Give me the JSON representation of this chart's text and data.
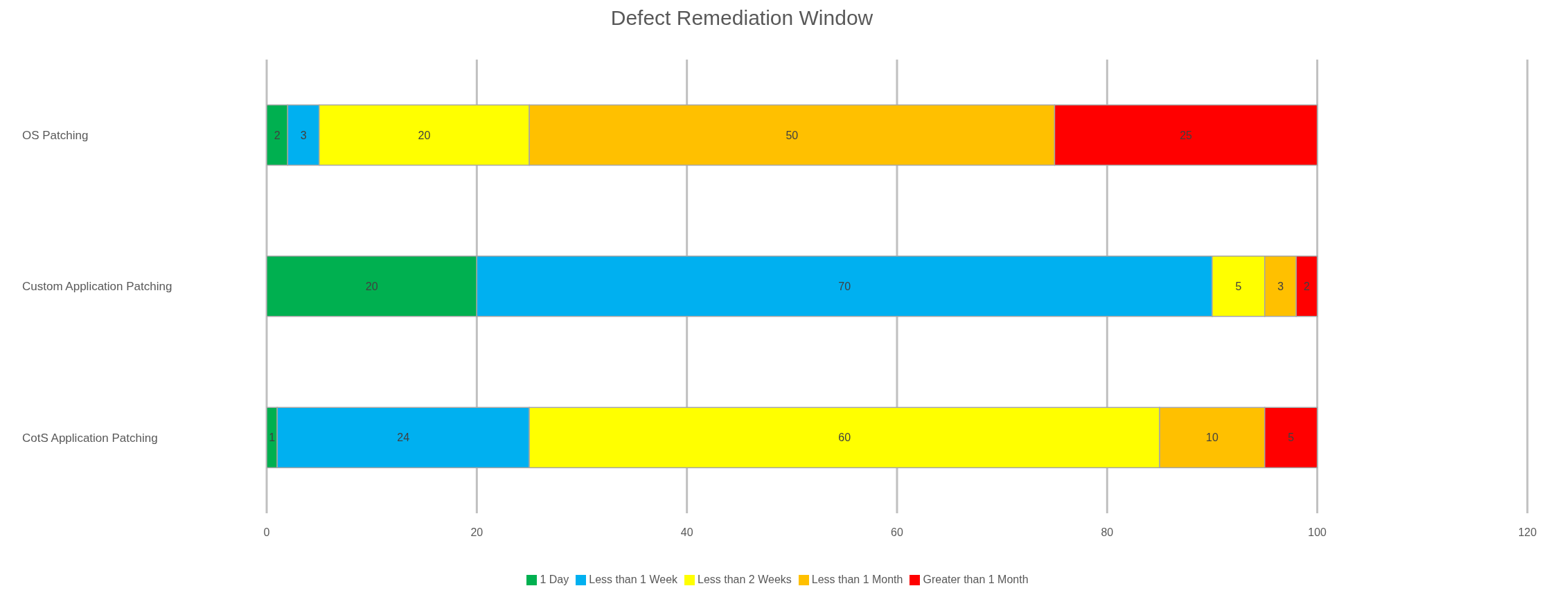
{
  "chart_data": {
    "type": "bar",
    "orientation": "horizontal",
    "stacked": true,
    "title": "Defect Remediation Window",
    "categories": [
      "OS Patching",
      "Custom Application Patching",
      "CotS Application Patching"
    ],
    "series": [
      {
        "name": "1 Day",
        "color": "#00b050",
        "values": [
          2,
          20,
          1
        ]
      },
      {
        "name": "Less than 1 Week",
        "color": "#00b0f0",
        "values": [
          3,
          70,
          24
        ]
      },
      {
        "name": "Less than 2 Weeks",
        "color": "#ffff00",
        "values": [
          20,
          5,
          60
        ]
      },
      {
        "name": "Less than 1 Month",
        "color": "#ffc000",
        "values": [
          50,
          3,
          10
        ]
      },
      {
        "name": "Greater than 1 Month",
        "color": "#ff0000",
        "values": [
          25,
          2,
          5
        ]
      }
    ],
    "xlim": [
      0,
      120
    ],
    "xticks": [
      0,
      20,
      40,
      60,
      80,
      100,
      120
    ],
    "grid": "x",
    "legend": "bottom",
    "data_labels": true
  }
}
